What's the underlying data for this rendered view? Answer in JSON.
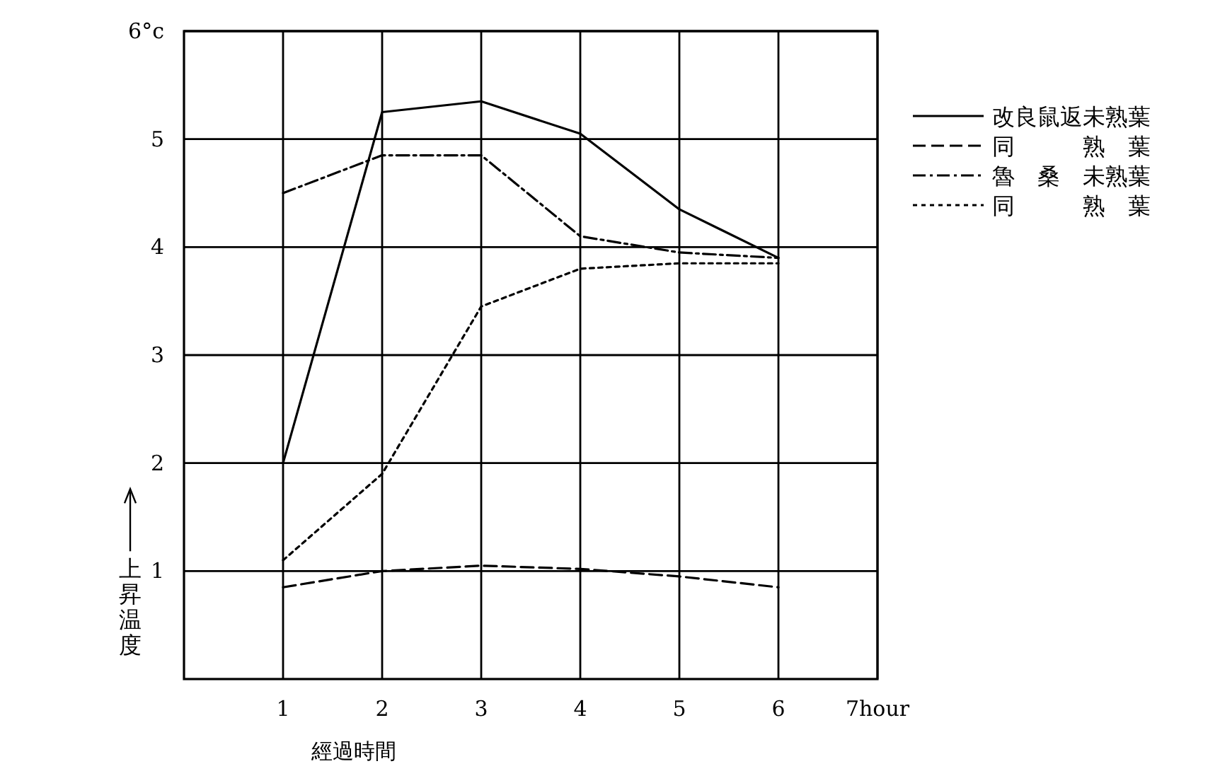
{
  "chart_data": {
    "type": "line",
    "xlabel": "經過時間",
    "ylabel": "上昇温度",
    "x": [
      1,
      2,
      3,
      4,
      5,
      6
    ],
    "xlim": [
      0,
      7
    ],
    "xticks": [
      1,
      2,
      3,
      4,
      5,
      6,
      {
        "value": 7,
        "label": "7hour"
      }
    ],
    "ylim": [
      0,
      6
    ],
    "yticks": [
      1,
      2,
      3,
      4,
      5,
      {
        "value": 6,
        "label": "6°c"
      }
    ],
    "grid": true,
    "legend": "top right",
    "series": [
      {
        "name": "改良鼠返未熟葉",
        "color": "#000000",
        "line_style": "solid",
        "values": [
          2.0,
          5.25,
          5.35,
          5.05,
          4.35,
          3.9
        ]
      },
      {
        "name": "同　　　熟　葉",
        "color": "#000000",
        "line_style": "dashed",
        "values": [
          0.85,
          1.0,
          1.05,
          1.02,
          0.95,
          0.85
        ]
      },
      {
        "name": "魯　桑　未熟葉",
        "color": "#000000",
        "line_style": "dashdot",
        "values": [
          4.5,
          4.85,
          4.85,
          4.1,
          3.95,
          3.9
        ]
      },
      {
        "name": "同　　　熟　葉",
        "color": "#000000",
        "line_style": "dotted",
        "values": [
          1.1,
          1.9,
          3.45,
          3.8,
          3.85,
          3.85
        ]
      }
    ]
  }
}
